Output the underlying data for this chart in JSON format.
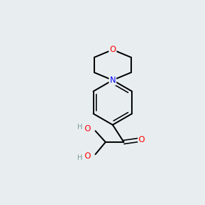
{
  "background_color": "#e8eef0",
  "bond_color": "#000000",
  "atom_colors": {
    "O": "#ff0000",
    "N": "#0000ff",
    "C": "#000000",
    "H": "#7a9a9a"
  },
  "figsize": [
    3.0,
    3.0
  ],
  "dpi": 100
}
